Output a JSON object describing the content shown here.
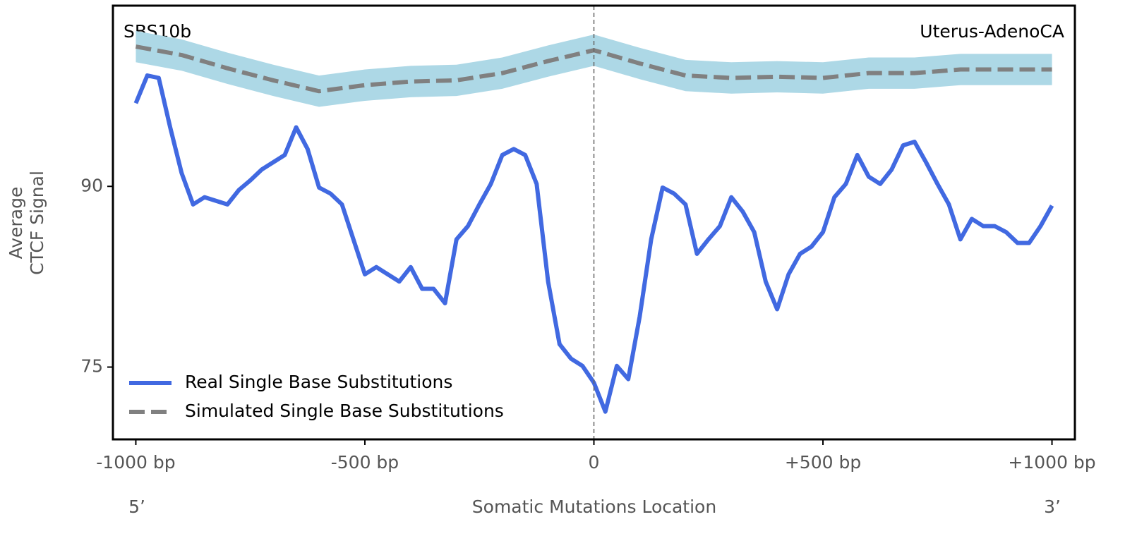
{
  "chart_data": {
    "type": "line",
    "annotations": {
      "left": "SBS10b",
      "right": "Uterus-AdenoCA"
    },
    "xlabel": "Somatic Mutations Location",
    "ylabel": [
      "Average",
      "CTCF Signal"
    ],
    "x_end_labels": [
      "5’",
      "3’"
    ],
    "xlim": [
      -1050,
      1050
    ],
    "ylim": [
      69,
      105
    ],
    "xticks": [
      {
        "value": -1000,
        "label": "-1000 bp"
      },
      {
        "value": -500,
        "label": "-500 bp"
      },
      0,
      {
        "value": 500,
        "label": "+500 bp"
      },
      {
        "value": 1000,
        "label": "+1000 bp"
      }
    ],
    "yticks": [
      75,
      90
    ],
    "vline": 0,
    "legend": "lower left",
    "series": [
      {
        "name": "Real Single Base Substitutions",
        "color": "#4169e1",
        "x": [
          -1000,
          -975,
          -950,
          -925,
          -900,
          -875,
          -850,
          -825,
          -800,
          -775,
          -750,
          -725,
          -700,
          -675,
          -650,
          -625,
          -600,
          -575,
          -550,
          -525,
          -500,
          -475,
          -450,
          -425,
          -400,
          -375,
          -350,
          -325,
          -300,
          -275,
          -250,
          -225,
          -200,
          -175,
          -150,
          -125,
          -100,
          -75,
          -50,
          -25,
          0,
          25,
          50,
          75,
          100,
          125,
          150,
          175,
          200,
          225,
          250,
          275,
          300,
          325,
          350,
          375,
          400,
          425,
          450,
          475,
          500,
          525,
          550,
          575,
          600,
          625,
          650,
          675,
          700,
          725,
          750,
          775,
          800,
          825,
          850,
          875,
          900,
          925,
          950,
          975,
          1000
        ],
        "values": [
          96.9,
          99.2,
          99.0,
          94.9,
          91.1,
          88.5,
          89.1,
          88.8,
          88.5,
          89.7,
          90.5,
          91.4,
          92.0,
          92.6,
          94.9,
          93.1,
          89.9,
          89.4,
          88.5,
          85.6,
          82.7,
          83.3,
          82.7,
          82.1,
          83.3,
          81.5,
          81.5,
          80.3,
          85.6,
          86.7,
          88.5,
          90.2,
          92.6,
          93.1,
          92.6,
          90.2,
          82.1,
          76.9,
          75.7,
          75.1,
          73.7,
          71.3,
          75.1,
          74.0,
          79.2,
          85.6,
          89.9,
          89.4,
          88.5,
          84.4,
          85.6,
          86.7,
          89.1,
          87.9,
          86.2,
          82.1,
          79.8,
          82.7,
          84.4,
          85.0,
          86.2,
          89.1,
          90.2,
          92.6,
          90.8,
          90.2,
          91.4,
          93.4,
          93.7,
          92.0,
          90.2,
          88.5,
          85.6,
          87.3,
          86.7,
          86.7,
          86.2,
          85.3,
          85.3,
          86.7,
          88.4
        ]
      },
      {
        "name": "Simulated Single Base Substitutions",
        "color": "#808080",
        "band_color": "#add8e6",
        "x": [
          -1000,
          -900,
          -800,
          -700,
          -600,
          -500,
          -400,
          -300,
          -200,
          -100,
          0,
          100,
          200,
          300,
          400,
          500,
          600,
          700,
          800,
          900,
          1000
        ],
        "values": [
          101.6,
          100.9,
          99.8,
          98.8,
          97.9,
          98.4,
          98.7,
          98.8,
          99.4,
          100.4,
          101.3,
          100.2,
          99.2,
          99.0,
          99.1,
          99.0,
          99.4,
          99.4,
          99.7,
          99.7,
          99.7
        ],
        "lower": [
          100.3,
          99.6,
          98.5,
          97.5,
          96.6,
          97.1,
          97.4,
          97.5,
          98.1,
          99.1,
          100.0,
          98.9,
          97.9,
          97.7,
          97.8,
          97.7,
          98.1,
          98.1,
          98.4,
          98.4,
          98.4
        ],
        "upper": [
          102.9,
          102.2,
          101.1,
          100.1,
          99.2,
          99.7,
          100.0,
          100.1,
          100.7,
          101.7,
          102.6,
          101.5,
          100.5,
          100.3,
          100.4,
          100.3,
          100.7,
          100.7,
          101.0,
          101.0,
          101.0
        ]
      }
    ]
  }
}
